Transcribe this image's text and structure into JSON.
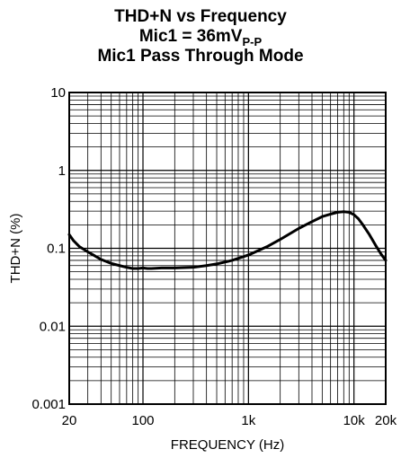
{
  "chart_data": {
    "type": "line",
    "title_lines": [
      {
        "text": "THD+N vs Frequency",
        "sub": ""
      },
      {
        "text": "Mic1 = 36mV",
        "sub": "P-P"
      },
      {
        "text": "Mic1 Pass Through Mode",
        "sub": ""
      }
    ],
    "xlabel": "FREQUENCY (Hz)",
    "ylabel": "THD+N (%)",
    "x_scale": "log",
    "y_scale": "log",
    "xlim": [
      20,
      20000
    ],
    "ylim": [
      0.001,
      10
    ],
    "grid": true,
    "x_ticks": [
      {
        "value": 20,
        "label": "20"
      },
      {
        "value": 100,
        "label": "100"
      },
      {
        "value": 1000,
        "label": "1k"
      },
      {
        "value": 10000,
        "label": "10k"
      },
      {
        "value": 20000,
        "label": "20k"
      }
    ],
    "y_ticks": [
      {
        "value": 10,
        "label": "10"
      },
      {
        "value": 1,
        "label": "1"
      },
      {
        "value": 0.1,
        "label": "0.1"
      },
      {
        "value": 0.01,
        "label": "0.01"
      },
      {
        "value": 0.001,
        "label": "0.001"
      }
    ],
    "series": [
      {
        "color": "#000000",
        "x": [
          20,
          22,
          25,
          30,
          35,
          40,
          50,
          60,
          70,
          80,
          90,
          100,
          110,
          120,
          150,
          200,
          300,
          400,
          500,
          700,
          1000,
          1500,
          2000,
          3000,
          4000,
          5000,
          6000,
          7000,
          8000,
          9000,
          10000,
          11000,
          12000,
          14000,
          16000,
          18000,
          20000
        ],
        "y": [
          0.15,
          0.125,
          0.105,
          0.09,
          0.08,
          0.072,
          0.064,
          0.06,
          0.057,
          0.055,
          0.055,
          0.056,
          0.055,
          0.055,
          0.056,
          0.056,
          0.057,
          0.06,
          0.063,
          0.07,
          0.082,
          0.105,
          0.13,
          0.18,
          0.22,
          0.255,
          0.275,
          0.29,
          0.295,
          0.29,
          0.27,
          0.24,
          0.205,
          0.15,
          0.11,
          0.085,
          0.07
        ]
      }
    ]
  }
}
